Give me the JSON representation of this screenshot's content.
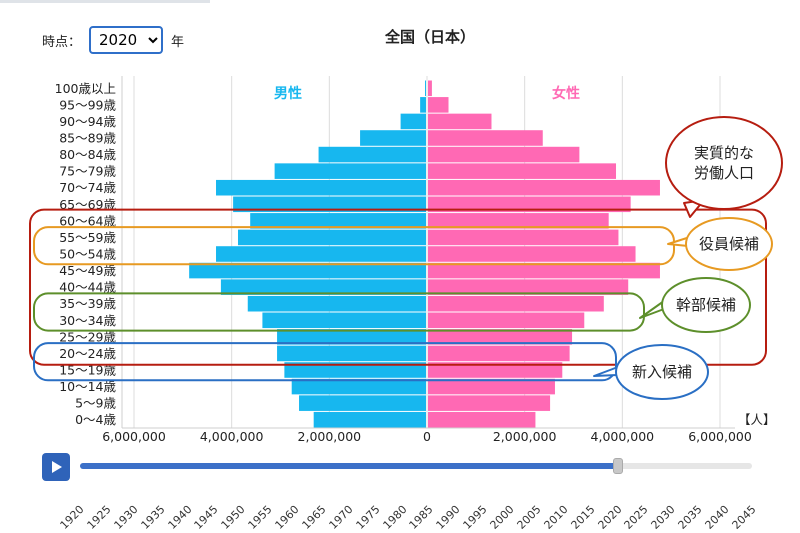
{
  "period_label": "時点：",
  "year_suffix": "年",
  "selected_year": "2020",
  "play_icon": "play-icon",
  "colors": {
    "male": "#17b7ef",
    "female": "#ff69b4",
    "annotation_red": "#b61d10",
    "annotation_orange": "#e79a22",
    "annotation_green": "#5d8f2b",
    "annotation_blue": "#2a6fc4",
    "slider_fill": "#3c70c8"
  },
  "annotations": [
    {
      "text": "実質的な\n労働人口",
      "color": "#b61d10",
      "from": "20〜24歳",
      "to": "60〜64歳"
    },
    {
      "text": "役員候補",
      "color": "#e79a22",
      "from": "50〜54歳",
      "to": "55〜59歳"
    },
    {
      "text": "幹部候補",
      "color": "#5d8f2b",
      "from": "30〜34歳",
      "to": "35〜39歳"
    },
    {
      "text": "新入候補",
      "color": "#2a6fc4",
      "from": "15〜19歳",
      "to": "20〜24歳"
    }
  ],
  "slider": {
    "years": [
      "1920",
      "1925",
      "1930",
      "1935",
      "1940",
      "1945",
      "1950",
      "1955",
      "1960",
      "1965",
      "1970",
      "1975",
      "1980",
      "1985",
      "1990",
      "1995",
      "2000",
      "2005",
      "2010",
      "2015",
      "2020",
      "2025",
      "2030",
      "2035",
      "2040",
      "2045"
    ],
    "value": "2020"
  },
  "chart_data": {
    "type": "bar",
    "orientation": "horizontal",
    "title": "全国（日本）",
    "unit_label": "【人】",
    "categories": [
      "0〜4歳",
      "5〜9歳",
      "10〜14歳",
      "15〜19歳",
      "20〜24歳",
      "25〜29歳",
      "30〜34歳",
      "35〜39歳",
      "40〜44歳",
      "45〜49歳",
      "50〜54歳",
      "55〜59歳",
      "60〜64歳",
      "65〜69歳",
      "70〜74歳",
      "75〜79歳",
      "80〜84歳",
      "85〜89歳",
      "90〜94歳",
      "95〜99歳",
      "100歳以上"
    ],
    "series": [
      {
        "name": "男性",
        "values": [
          2300000,
          2600000,
          2750000,
          2900000,
          3050000,
          3050000,
          3350000,
          3650000,
          4200000,
          4850000,
          4300000,
          3850000,
          3600000,
          3950000,
          4300000,
          3100000,
          2200000,
          1350000,
          520000,
          120000,
          20000
        ]
      },
      {
        "name": "女性",
        "values": [
          2200000,
          2500000,
          2600000,
          2750000,
          2900000,
          2950000,
          3200000,
          3600000,
          4100000,
          4750000,
          4250000,
          3900000,
          3700000,
          4150000,
          4750000,
          3850000,
          3100000,
          2350000,
          1300000,
          420000,
          80000
        ]
      }
    ],
    "x_ticks": [
      "6,000,000",
      "4,000,000",
      "2,000,000",
      "0",
      "2,000,000",
      "4,000,000",
      "6,000,000"
    ],
    "x_max": 6000000,
    "grid": true
  }
}
